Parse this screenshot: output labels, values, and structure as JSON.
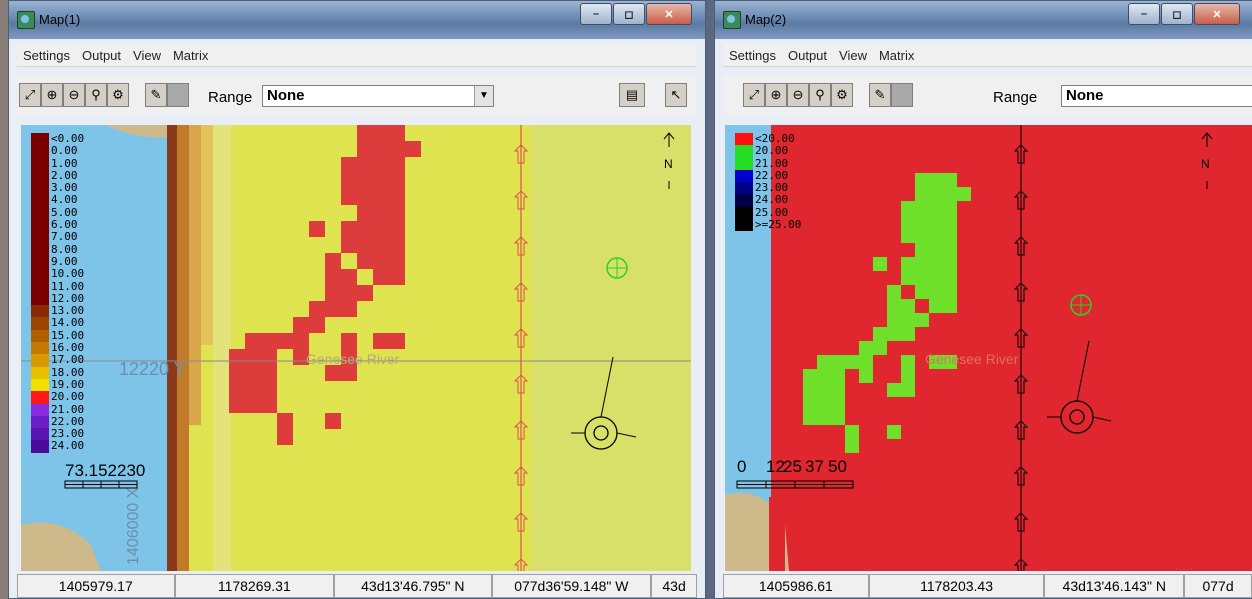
{
  "windows": [
    {
      "title": "Map(1)",
      "menu": [
        "Settings",
        "Output",
        "View",
        "Matrix"
      ],
      "range_label": "Range",
      "range_value": "None",
      "legend": [
        {
          "label": "<0.00",
          "color": "#7a0000"
        },
        {
          "label": "0.00",
          "color": "#7a0000"
        },
        {
          "label": "1.00",
          "color": "#7a0000"
        },
        {
          "label": "2.00",
          "color": "#7a0000"
        },
        {
          "label": "3.00",
          "color": "#7a0000"
        },
        {
          "label": "4.00",
          "color": "#7a0000"
        },
        {
          "label": "5.00",
          "color": "#7a0000"
        },
        {
          "label": "6.00",
          "color": "#7a0000"
        },
        {
          "label": "7.00",
          "color": "#7a0000"
        },
        {
          "label": "8.00",
          "color": "#7a0000"
        },
        {
          "label": "9.00",
          "color": "#7a0000"
        },
        {
          "label": "10.00",
          "color": "#7a0000"
        },
        {
          "label": "11.00",
          "color": "#7a0000"
        },
        {
          "label": "12.00",
          "color": "#7a0000"
        },
        {
          "label": "13.00",
          "color": "#8a2a00"
        },
        {
          "label": "14.00",
          "color": "#9a4400"
        },
        {
          "label": "15.00",
          "color": "#b05e00"
        },
        {
          "label": "16.00",
          "color": "#c47a00"
        },
        {
          "label": "17.00",
          "color": "#d89a00"
        },
        {
          "label": "18.00",
          "color": "#e8c000"
        },
        {
          "label": "19.00",
          "color": "#f0e000"
        },
        {
          "label": "20.00",
          "color": "#ff1a1a"
        },
        {
          "label": "21.00",
          "color": "#8a2be2"
        },
        {
          "label": "22.00",
          "color": "#6a1ec8"
        },
        {
          "label": "23.00",
          "color": "#5a14b0"
        },
        {
          "label": "24.00",
          "color": "#4a0c98"
        }
      ],
      "river_label": "Genesee River",
      "overlay_y": "12220 Y",
      "overlay_x": "1406000 X",
      "scale_text": "73.152230",
      "north_label": "N",
      "status": [
        "1405979.17",
        "1178269.31",
        "43d13'46.795\" N",
        "077d36'59.148\" W",
        "43d"
      ],
      "colors": {
        "fill": "#dfe34f",
        "patch": "#dd3c3c",
        "water": "#7ec4e8"
      }
    },
    {
      "title": "Map(2)",
      "menu": [
        "Settings",
        "Output",
        "View",
        "Matrix"
      ],
      "range_label": "Range",
      "range_value": "None",
      "legend": [
        {
          "label": "<20.00",
          "color": "#ff1010"
        },
        {
          "label": "20.00",
          "color": "#22dd22"
        },
        {
          "label": "21.00",
          "color": "#22dd22"
        },
        {
          "label": "22.00",
          "color": "#0000cc"
        },
        {
          "label": "23.00",
          "color": "#000088"
        },
        {
          "label": "24.00",
          "color": "#000044"
        },
        {
          "label": "25.00",
          "color": "#000000"
        },
        {
          "label": ">=25.00",
          "color": "#000000"
        }
      ],
      "river_label": "Genesee River",
      "scale_ticks": [
        "0",
        "12",
        "25",
        "37",
        "50"
      ],
      "north_label": "N",
      "status": [
        "1405986.61",
        "1178203.43",
        "43d13'46.143\" N",
        "077d"
      ],
      "colors": {
        "fill": "#e0262e",
        "patch": "#6fe02a",
        "water": "#7ec4e8"
      }
    }
  ]
}
